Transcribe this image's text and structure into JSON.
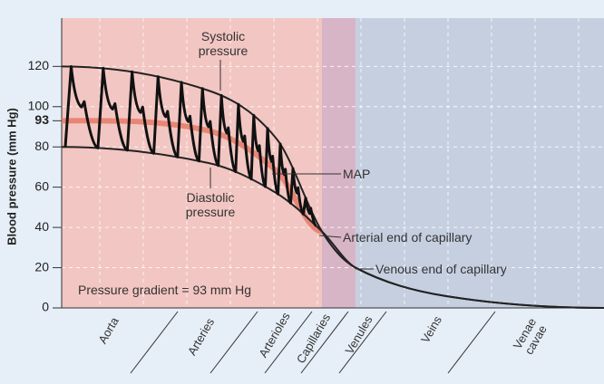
{
  "chart_data": {
    "type": "line",
    "y_label": "Blood pressure (mm Hg)",
    "categories": [
      "Aorta",
      "Arteries",
      "Arterioles",
      "Capillaries",
      "Venules",
      "Veins",
      "Venae cavae"
    ],
    "series": [
      {
        "name": "Systolic pressure",
        "color": "#222222",
        "values": [
          120,
          108,
          84,
          38,
          20,
          6,
          0
        ]
      },
      {
        "name": "Diastolic pressure",
        "color": "#222222",
        "values": [
          80,
          72,
          57,
          38,
          20,
          6,
          0
        ]
      },
      {
        "name": "MAP",
        "color": "#e57a68",
        "values": [
          93,
          88,
          68,
          38,
          null,
          null,
          null
        ]
      }
    ],
    "annotations": [
      "Arterial end of capillary",
      "Venous end of capillary",
      "Pressure gradient = 93 mm Hg"
    ],
    "ylim": [
      0,
      144
    ],
    "yticks": [
      0,
      20,
      40,
      60,
      80,
      93,
      100,
      120
    ],
    "bold_ytick": 93,
    "grid": true,
    "region_colors": [
      "#f2c6c2",
      "#d8b5c6",
      "#c6cfe0"
    ]
  }
}
